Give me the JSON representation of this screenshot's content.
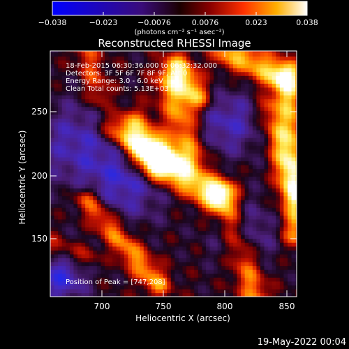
{
  "colorbar": {
    "tick_labels": [
      "−0.038",
      "−0.023",
      "−0.0076",
      "0.0076",
      "0.023",
      "0.038"
    ],
    "unit_label": "(photons cm⁻² s⁻¹ asec⁻²)",
    "range": [
      -0.038,
      0.038
    ]
  },
  "chart_data": {
    "type": "heatmap",
    "title": "Reconstructed RHESSI Image",
    "xlabel": "Heliocentric X (arcsec)",
    "ylabel": "Heliocentric Y (arcsec)",
    "xlim": [
      662,
      852
    ],
    "ylim": [
      100,
      290
    ],
    "x_ticks": [
      "700",
      "750",
      "800",
      "850"
    ],
    "y_ticks": [
      "150",
      "200",
      "250"
    ],
    "annotations": [
      "18-Feb-2015 06:30:36.000 to 06:32:32.000",
      "Detectors: 3F 5F 6F 7F 8F 9F, Att 0",
      "Energy Range: 3.0 - 6.0 keV",
      "Clean     Total counts: 5.13E+03"
    ],
    "peak_label": "Position of Peak = [747,208]",
    "peak": [
      747,
      208
    ],
    "ridges": [
      {
        "x0": 735,
        "y0": 212,
        "x1": 790,
        "y1": 178,
        "amp": 1.0,
        "w": 9
      },
      {
        "x0": 725,
        "y0": 230,
        "x1": 745,
        "y1": 205,
        "amp": 1.0,
        "w": 10
      },
      {
        "x0": 755,
        "y0": 265,
        "x1": 770,
        "y1": 210,
        "amp": 0.7,
        "w": 9
      },
      {
        "x0": 760,
        "y0": 278,
        "x1": 775,
        "y1": 255,
        "amp": 0.8,
        "w": 8
      },
      {
        "x0": 800,
        "y0": 290,
        "x1": 840,
        "y1": 270,
        "amp": 0.8,
        "w": 9
      },
      {
        "x0": 845,
        "y0": 270,
        "x1": 852,
        "y1": 150,
        "amp": 0.75,
        "w": 8
      },
      {
        "x0": 830,
        "y0": 245,
        "x1": 850,
        "y1": 180,
        "amp": 0.5,
        "w": 7
      },
      {
        "x0": 795,
        "y0": 180,
        "x1": 820,
        "y1": 100,
        "amp": 0.65,
        "w": 8
      },
      {
        "x0": 690,
        "y0": 175,
        "x1": 745,
        "y1": 110,
        "amp": 0.7,
        "w": 7
      },
      {
        "x0": 662,
        "y0": 140,
        "x1": 690,
        "y1": 130,
        "amp": 0.4,
        "w": 6
      },
      {
        "x0": 690,
        "y0": 290,
        "x1": 700,
        "y1": 255,
        "amp": 0.45,
        "w": 7
      },
      {
        "x0": 705,
        "y0": 232,
        "x1": 718,
        "y1": 222,
        "amp": 0.4,
        "w": 6
      }
    ],
    "dips": [
      {
        "x": 720,
        "y": 190,
        "amp": -0.6,
        "w": 22
      },
      {
        "x": 800,
        "y": 235,
        "amp": -0.55,
        "w": 18
      },
      {
        "x": 680,
        "y": 220,
        "amp": -0.5,
        "w": 22
      },
      {
        "x": 812,
        "y": 150,
        "amp": -0.45,
        "w": 18
      },
      {
        "x": 670,
        "y": 115,
        "amp": -0.7,
        "w": 14
      }
    ]
  },
  "timestamp": "19-May-2022 00:04"
}
